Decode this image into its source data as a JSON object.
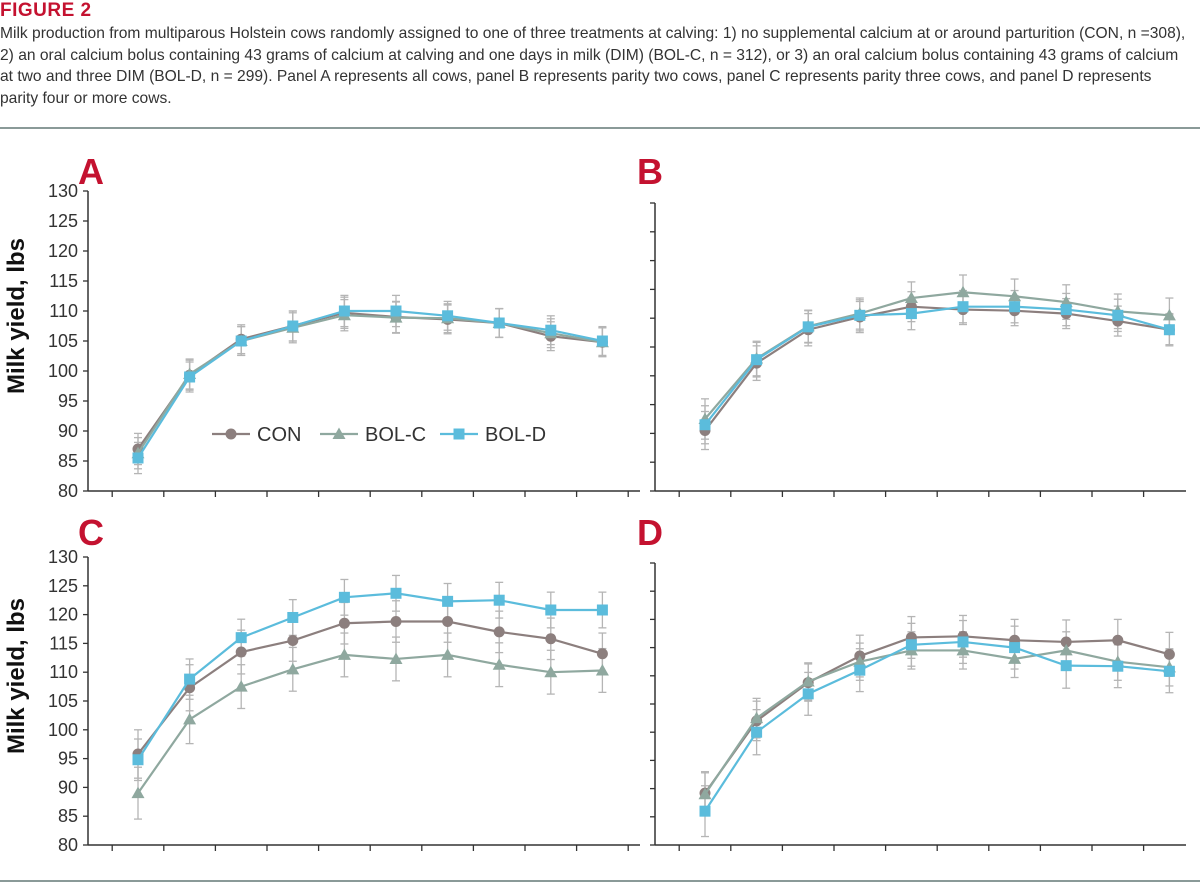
{
  "figure": {
    "label": "FIGURE 2",
    "caption": "Milk production from multiparous Holstein cows randomly assigned to one of three treatments at calving: 1) no supplemental calcium at or around parturition (CON, n =308), 2) an oral calcium bolus containing 43 grams of calcium at calving and one days in milk (DIM) (BOL-C, n = 312), or 3) an oral calcium bolus containing 43 grams of calcium at two and three DIM (BOL-D, n = 299). Panel A represents all cows, panel B represents parity two cows, panel C represents parity three cows, and panel D represents parity four or more cows."
  },
  "colors": {
    "CON": "#8c7f7e",
    "BOL-C": "#8fa89f",
    "BOL-D": "#5bbcdc",
    "accent": "#c41230",
    "axis": "#333333",
    "error": "#b5b5b5"
  },
  "chart_data": [
    {
      "panel": "A",
      "type": "line",
      "ylabel": "Milk yield, lbs",
      "ylim": [
        80,
        130
      ],
      "yticks": [
        "80",
        "85",
        "90",
        "95",
        "100",
        "105",
        "110",
        "115",
        "120",
        "125",
        "130"
      ],
      "show_yticklabels": true,
      "legend": "center",
      "series": [
        {
          "name": "CON",
          "marker": "circle",
          "values": [
            87.0,
            99.3,
            105.3,
            107.5,
            109.7,
            109.0,
            108.6,
            108.0,
            105.8,
            104.8
          ],
          "err": [
            2.6,
            2.5,
            2.4,
            2.5,
            2.6,
            2.6,
            2.4,
            2.4,
            2.4,
            2.4
          ]
        },
        {
          "name": "BOL-C",
          "marker": "triangle",
          "values": [
            86.3,
            99.5,
            105.0,
            107.2,
            109.3,
            108.9,
            108.8,
            108.0,
            106.3,
            104.8
          ],
          "err": [
            2.6,
            2.5,
            2.4,
            2.5,
            2.6,
            2.6,
            2.4,
            2.4,
            2.4,
            2.4
          ]
        },
        {
          "name": "BOL-D",
          "marker": "square",
          "values": [
            85.5,
            99.0,
            105.0,
            107.5,
            110.0,
            110.0,
            109.2,
            108.0,
            106.8,
            105.0
          ],
          "err": [
            2.6,
            2.5,
            2.4,
            2.5,
            2.6,
            2.6,
            2.4,
            2.4,
            2.4,
            2.4
          ]
        }
      ]
    },
    {
      "panel": "B",
      "type": "line",
      "ylabel": "",
      "ylim": [
        80,
        130
      ],
      "yticks": [],
      "show_yticklabels": false,
      "series": [
        {
          "name": "CON",
          "marker": "circle",
          "values": [
            90.5,
            102.2,
            108.0,
            110.2,
            112.0,
            111.5,
            111.3,
            110.8,
            109.5,
            108.0
          ],
          "err": [
            3.3,
            3.0,
            2.8,
            2.7,
            2.6,
            2.6,
            2.6,
            2.6,
            2.6,
            2.6
          ]
        },
        {
          "name": "BOL-C",
          "marker": "triangle",
          "values": [
            92.5,
            103.0,
            108.6,
            110.8,
            113.5,
            114.5,
            113.8,
            112.8,
            111.2,
            110.5
          ],
          "err": [
            3.5,
            3.0,
            2.8,
            2.7,
            2.8,
            3.0,
            3.0,
            3.0,
            3.0,
            3.0
          ]
        },
        {
          "name": "BOL-D",
          "marker": "square",
          "values": [
            91.5,
            102.8,
            108.5,
            110.5,
            110.8,
            112.0,
            112.0,
            111.5,
            110.5,
            108.0
          ],
          "err": [
            3.3,
            3.0,
            2.8,
            2.7,
            2.8,
            2.8,
            2.8,
            2.8,
            2.8,
            2.8
          ]
        }
      ]
    },
    {
      "panel": "C",
      "type": "line",
      "ylabel": "Milk yield, lbs",
      "ylim": [
        80,
        130
      ],
      "yticks": [
        "80",
        "85",
        "90",
        "95",
        "100",
        "105",
        "110",
        "115",
        "120",
        "125",
        "130"
      ],
      "show_yticklabels": true,
      "series": [
        {
          "name": "CON",
          "marker": "circle",
          "values": [
            95.8,
            107.3,
            113.5,
            115.5,
            118.5,
            118.8,
            118.8,
            117.0,
            115.8,
            113.2
          ],
          "err": [
            4.2,
            4.0,
            3.8,
            3.6,
            3.6,
            3.6,
            3.6,
            3.6,
            3.6,
            3.6
          ]
        },
        {
          "name": "BOL-C",
          "marker": "triangle",
          "values": [
            89.0,
            101.8,
            107.5,
            110.5,
            113.0,
            112.3,
            113.0,
            111.3,
            110.0,
            110.3
          ],
          "err": [
            4.5,
            4.2,
            3.8,
            3.8,
            3.8,
            3.8,
            3.8,
            3.8,
            3.8,
            3.8
          ]
        },
        {
          "name": "BOL-D",
          "marker": "square",
          "values": [
            94.8,
            108.8,
            116.0,
            119.5,
            123.0,
            123.7,
            122.3,
            122.5,
            120.8,
            120.8
          ],
          "err": [
            3.6,
            3.5,
            3.2,
            3.1,
            3.1,
            3.1,
            3.1,
            3.1,
            3.1,
            3.1
          ]
        }
      ]
    },
    {
      "panel": "D",
      "type": "line",
      "ylabel": "",
      "ylim": [
        80,
        130
      ],
      "yticks": [],
      "show_yticklabels": false,
      "series": [
        {
          "name": "CON",
          "marker": "circle",
          "values": [
            89.2,
            102.0,
            108.8,
            113.5,
            116.8,
            117.0,
            116.3,
            116.0,
            116.3,
            113.8
          ],
          "err": [
            3.8,
            3.5,
            3.3,
            3.7,
            3.7,
            3.7,
            3.7,
            3.9,
            3.7,
            3.9
          ]
        },
        {
          "name": "BOL-C",
          "marker": "triangle",
          "values": [
            89.0,
            102.5,
            109.0,
            112.5,
            114.5,
            114.5,
            113.0,
            114.5,
            112.5,
            111.5
          ],
          "err": [
            3.8,
            3.5,
            3.3,
            3.3,
            3.3,
            3.3,
            3.3,
            3.3,
            3.3,
            3.3
          ]
        },
        {
          "name": "BOL-D",
          "marker": "square",
          "values": [
            86.0,
            100.0,
            106.8,
            111.0,
            115.5,
            116.0,
            115.0,
            111.8,
            111.7,
            110.8
          ],
          "err": [
            4.5,
            4.0,
            3.8,
            3.8,
            3.8,
            3.8,
            3.8,
            4.0,
            3.8,
            3.8
          ]
        }
      ]
    }
  ]
}
